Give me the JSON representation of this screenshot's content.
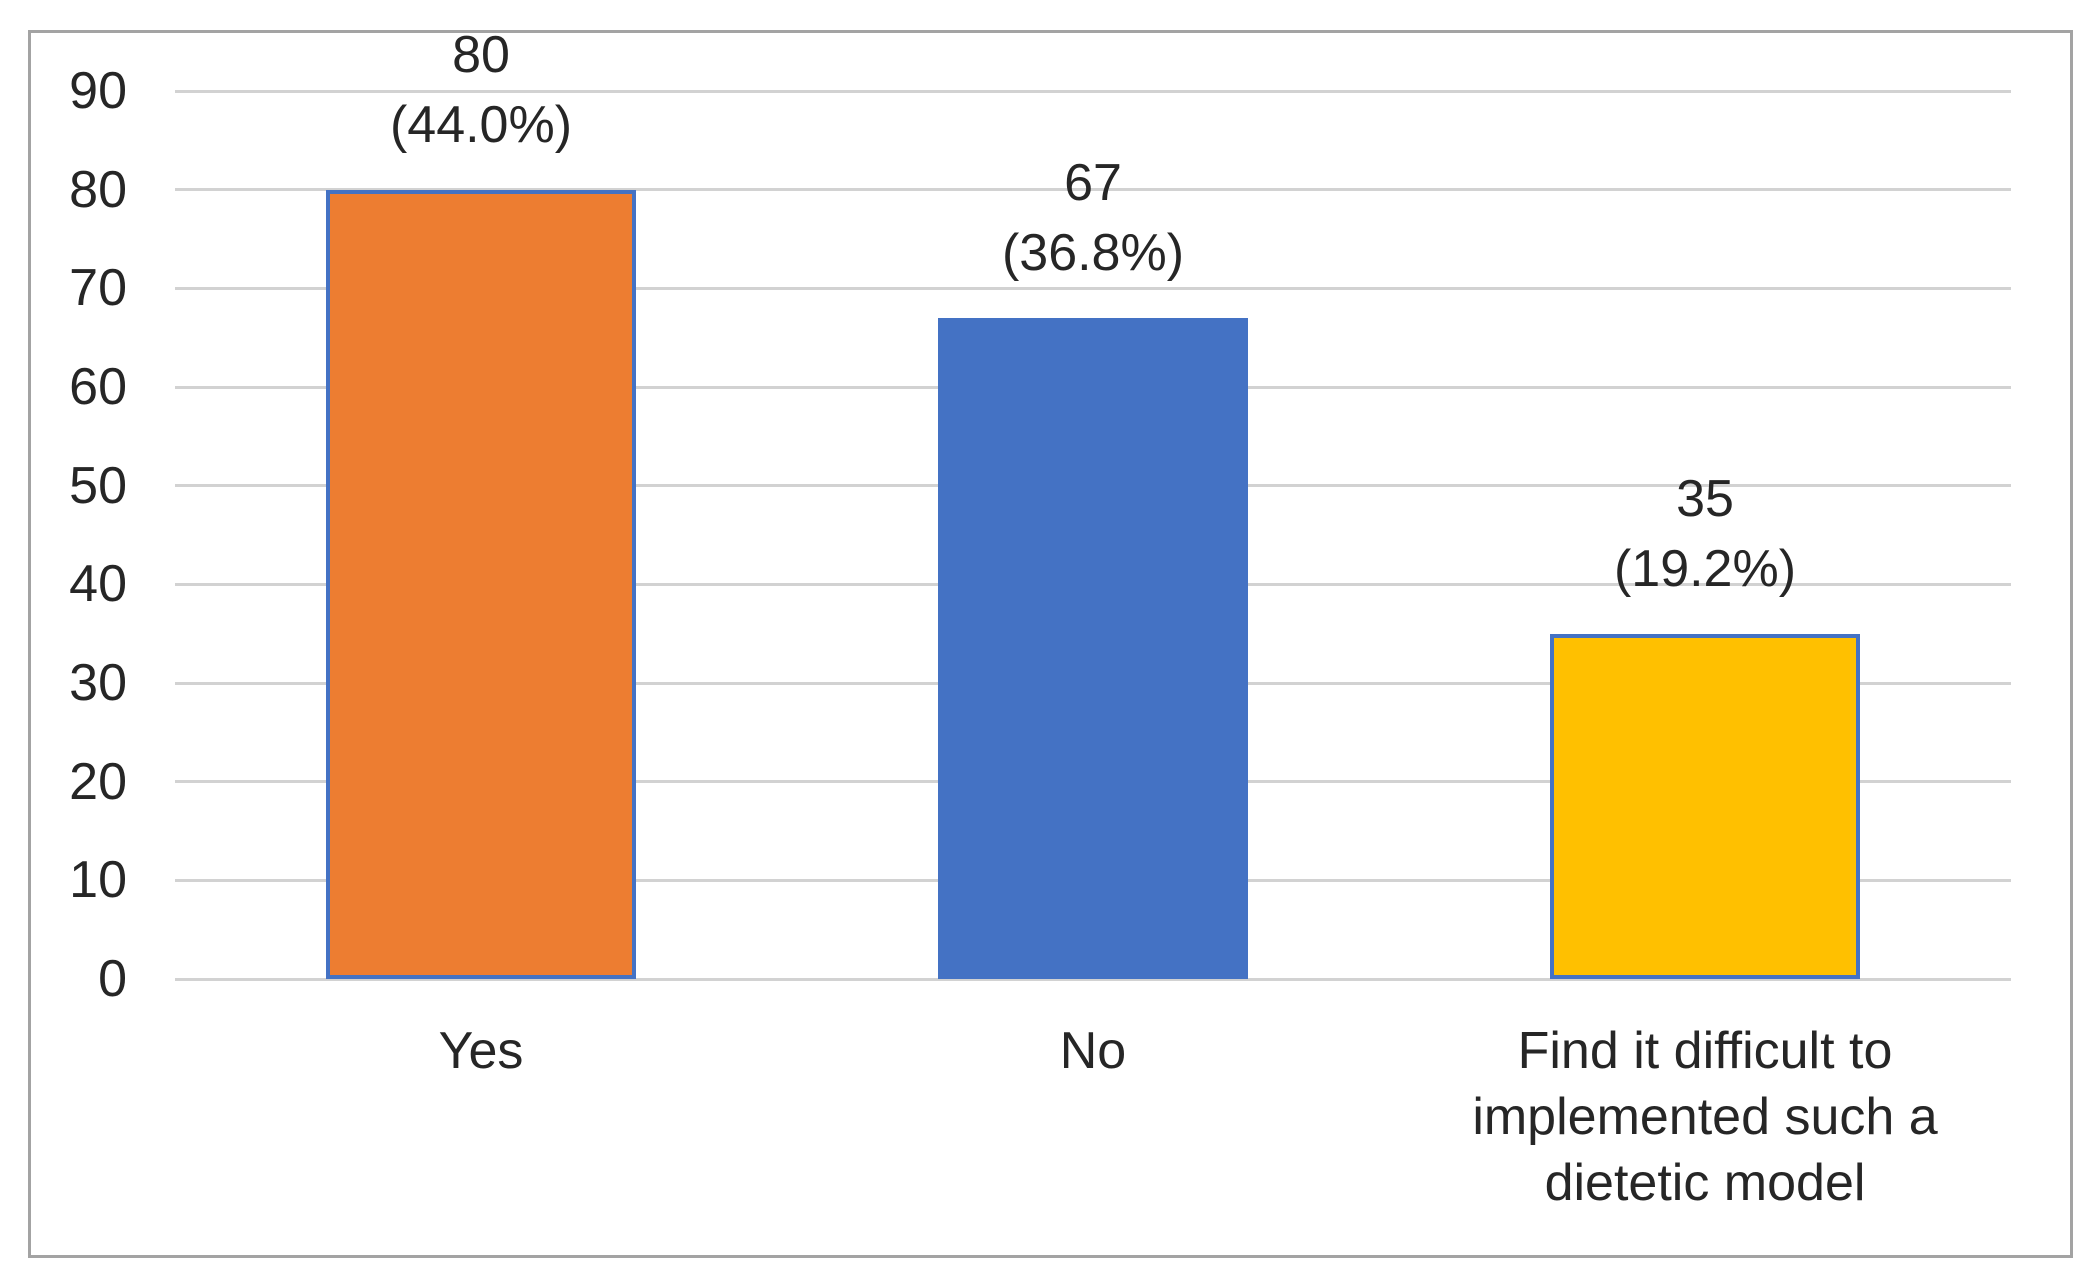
{
  "chart_data": {
    "type": "bar",
    "title": "",
    "xlabel": "",
    "ylabel": "",
    "categories": [
      "Yes",
      "No",
      "Find it difficult to implemented such a dietetic model"
    ],
    "values": [
      80,
      67,
      35
    ],
    "data_labels": [
      [
        "80",
        "(44.0%)"
      ],
      [
        "67",
        "(36.8%)"
      ],
      [
        "35",
        "(19.2%)"
      ]
    ],
    "yticks": [
      0,
      10,
      20,
      30,
      40,
      50,
      60,
      70,
      80,
      90
    ],
    "ylim": [
      0,
      90
    ],
    "grid": true,
    "legend_position": "none",
    "bar_colors": [
      "#ED7D31",
      "#4472C4",
      "#FFC000"
    ],
    "bar_border_color": "#4472C4",
    "gridline_color": "#D2D2D2",
    "chart_border_color": "#A3A3A3",
    "text_color": "#262626",
    "background_color": "#FFFFFF"
  }
}
